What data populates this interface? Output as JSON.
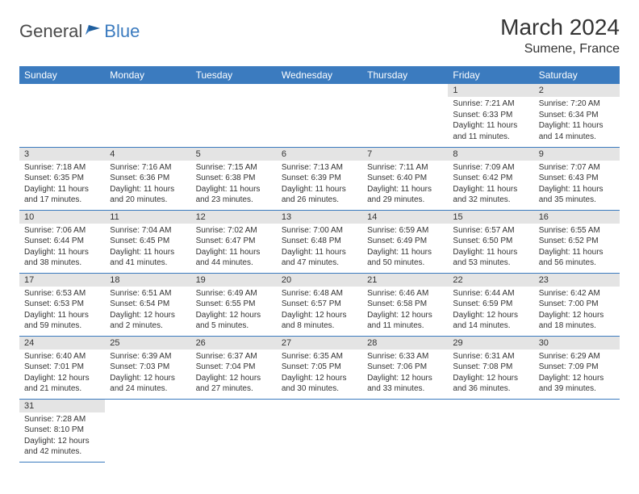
{
  "logo": {
    "part1": "General",
    "part2": "Blue"
  },
  "title": "March 2024",
  "location": "Sumene, France",
  "colors": {
    "header_bg": "#3b7bbf",
    "header_fg": "#ffffff",
    "daynum_bg": "#e4e4e4",
    "row_border": "#3b7bbf",
    "text": "#333333",
    "logo_gray": "#4a4a4a",
    "logo_blue": "#3b7bbf"
  },
  "weekdays": [
    "Sunday",
    "Monday",
    "Tuesday",
    "Wednesday",
    "Thursday",
    "Friday",
    "Saturday"
  ],
  "weeks": [
    [
      null,
      null,
      null,
      null,
      null,
      {
        "n": "1",
        "sr": "Sunrise: 7:21 AM",
        "ss": "Sunset: 6:33 PM",
        "d1": "Daylight: 11 hours",
        "d2": "and 11 minutes."
      },
      {
        "n": "2",
        "sr": "Sunrise: 7:20 AM",
        "ss": "Sunset: 6:34 PM",
        "d1": "Daylight: 11 hours",
        "d2": "and 14 minutes."
      }
    ],
    [
      {
        "n": "3",
        "sr": "Sunrise: 7:18 AM",
        "ss": "Sunset: 6:35 PM",
        "d1": "Daylight: 11 hours",
        "d2": "and 17 minutes."
      },
      {
        "n": "4",
        "sr": "Sunrise: 7:16 AM",
        "ss": "Sunset: 6:36 PM",
        "d1": "Daylight: 11 hours",
        "d2": "and 20 minutes."
      },
      {
        "n": "5",
        "sr": "Sunrise: 7:15 AM",
        "ss": "Sunset: 6:38 PM",
        "d1": "Daylight: 11 hours",
        "d2": "and 23 minutes."
      },
      {
        "n": "6",
        "sr": "Sunrise: 7:13 AM",
        "ss": "Sunset: 6:39 PM",
        "d1": "Daylight: 11 hours",
        "d2": "and 26 minutes."
      },
      {
        "n": "7",
        "sr": "Sunrise: 7:11 AM",
        "ss": "Sunset: 6:40 PM",
        "d1": "Daylight: 11 hours",
        "d2": "and 29 minutes."
      },
      {
        "n": "8",
        "sr": "Sunrise: 7:09 AM",
        "ss": "Sunset: 6:42 PM",
        "d1": "Daylight: 11 hours",
        "d2": "and 32 minutes."
      },
      {
        "n": "9",
        "sr": "Sunrise: 7:07 AM",
        "ss": "Sunset: 6:43 PM",
        "d1": "Daylight: 11 hours",
        "d2": "and 35 minutes."
      }
    ],
    [
      {
        "n": "10",
        "sr": "Sunrise: 7:06 AM",
        "ss": "Sunset: 6:44 PM",
        "d1": "Daylight: 11 hours",
        "d2": "and 38 minutes."
      },
      {
        "n": "11",
        "sr": "Sunrise: 7:04 AM",
        "ss": "Sunset: 6:45 PM",
        "d1": "Daylight: 11 hours",
        "d2": "and 41 minutes."
      },
      {
        "n": "12",
        "sr": "Sunrise: 7:02 AM",
        "ss": "Sunset: 6:47 PM",
        "d1": "Daylight: 11 hours",
        "d2": "and 44 minutes."
      },
      {
        "n": "13",
        "sr": "Sunrise: 7:00 AM",
        "ss": "Sunset: 6:48 PM",
        "d1": "Daylight: 11 hours",
        "d2": "and 47 minutes."
      },
      {
        "n": "14",
        "sr": "Sunrise: 6:59 AM",
        "ss": "Sunset: 6:49 PM",
        "d1": "Daylight: 11 hours",
        "d2": "and 50 minutes."
      },
      {
        "n": "15",
        "sr": "Sunrise: 6:57 AM",
        "ss": "Sunset: 6:50 PM",
        "d1": "Daylight: 11 hours",
        "d2": "and 53 minutes."
      },
      {
        "n": "16",
        "sr": "Sunrise: 6:55 AM",
        "ss": "Sunset: 6:52 PM",
        "d1": "Daylight: 11 hours",
        "d2": "and 56 minutes."
      }
    ],
    [
      {
        "n": "17",
        "sr": "Sunrise: 6:53 AM",
        "ss": "Sunset: 6:53 PM",
        "d1": "Daylight: 11 hours",
        "d2": "and 59 minutes."
      },
      {
        "n": "18",
        "sr": "Sunrise: 6:51 AM",
        "ss": "Sunset: 6:54 PM",
        "d1": "Daylight: 12 hours",
        "d2": "and 2 minutes."
      },
      {
        "n": "19",
        "sr": "Sunrise: 6:49 AM",
        "ss": "Sunset: 6:55 PM",
        "d1": "Daylight: 12 hours",
        "d2": "and 5 minutes."
      },
      {
        "n": "20",
        "sr": "Sunrise: 6:48 AM",
        "ss": "Sunset: 6:57 PM",
        "d1": "Daylight: 12 hours",
        "d2": "and 8 minutes."
      },
      {
        "n": "21",
        "sr": "Sunrise: 6:46 AM",
        "ss": "Sunset: 6:58 PM",
        "d1": "Daylight: 12 hours",
        "d2": "and 11 minutes."
      },
      {
        "n": "22",
        "sr": "Sunrise: 6:44 AM",
        "ss": "Sunset: 6:59 PM",
        "d1": "Daylight: 12 hours",
        "d2": "and 14 minutes."
      },
      {
        "n": "23",
        "sr": "Sunrise: 6:42 AM",
        "ss": "Sunset: 7:00 PM",
        "d1": "Daylight: 12 hours",
        "d2": "and 18 minutes."
      }
    ],
    [
      {
        "n": "24",
        "sr": "Sunrise: 6:40 AM",
        "ss": "Sunset: 7:01 PM",
        "d1": "Daylight: 12 hours",
        "d2": "and 21 minutes."
      },
      {
        "n": "25",
        "sr": "Sunrise: 6:39 AM",
        "ss": "Sunset: 7:03 PM",
        "d1": "Daylight: 12 hours",
        "d2": "and 24 minutes."
      },
      {
        "n": "26",
        "sr": "Sunrise: 6:37 AM",
        "ss": "Sunset: 7:04 PM",
        "d1": "Daylight: 12 hours",
        "d2": "and 27 minutes."
      },
      {
        "n": "27",
        "sr": "Sunrise: 6:35 AM",
        "ss": "Sunset: 7:05 PM",
        "d1": "Daylight: 12 hours",
        "d2": "and 30 minutes."
      },
      {
        "n": "28",
        "sr": "Sunrise: 6:33 AM",
        "ss": "Sunset: 7:06 PM",
        "d1": "Daylight: 12 hours",
        "d2": "and 33 minutes."
      },
      {
        "n": "29",
        "sr": "Sunrise: 6:31 AM",
        "ss": "Sunset: 7:08 PM",
        "d1": "Daylight: 12 hours",
        "d2": "and 36 minutes."
      },
      {
        "n": "30",
        "sr": "Sunrise: 6:29 AM",
        "ss": "Sunset: 7:09 PM",
        "d1": "Daylight: 12 hours",
        "d2": "and 39 minutes."
      }
    ],
    [
      {
        "n": "31",
        "sr": "Sunrise: 7:28 AM",
        "ss": "Sunset: 8:10 PM",
        "d1": "Daylight: 12 hours",
        "d2": "and 42 minutes."
      },
      null,
      null,
      null,
      null,
      null,
      null
    ]
  ]
}
